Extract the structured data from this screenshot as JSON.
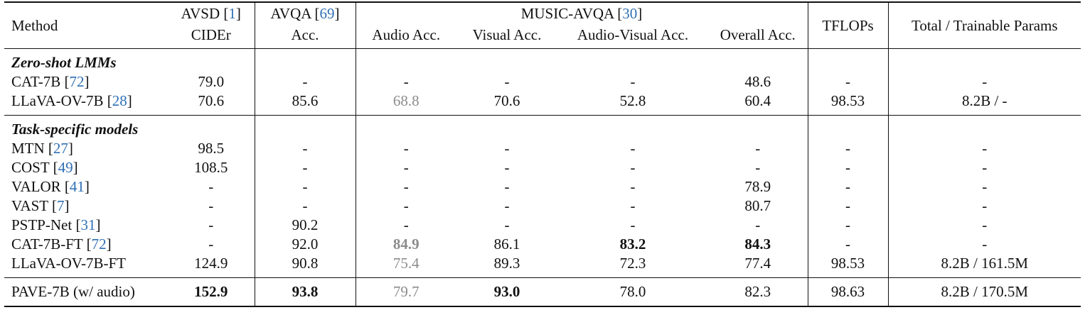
{
  "header": {
    "method": "Method",
    "avsd": "AVSD",
    "avsd_ref": "1",
    "avsd_metric": "CIDEr",
    "avqa": "AVQA",
    "avqa_ref": "69",
    "avqa_metric": "Acc.",
    "music": "MUSIC-AVQA",
    "music_ref": "30",
    "audio_acc": "Audio Acc.",
    "visual_acc": "Visual Acc.",
    "av_acc": "Audio-Visual Acc.",
    "overall_acc": "Overall Acc.",
    "tflops": "TFLOPs",
    "params": "Total / Trainable Params"
  },
  "sections": {
    "zero_shot": "Zero-shot LMMs",
    "task_specific": "Task-specific models"
  },
  "rows": [
    {
      "name": "CAT-7B",
      "ref": "72",
      "avsd": "79.0",
      "avqa": "-",
      "audio": "-",
      "visual": "-",
      "av": "-",
      "overall": "48.6",
      "tflops": "-",
      "params": "-"
    },
    {
      "name": "LLaVA-OV-7B",
      "ref": "28",
      "avsd": "70.6",
      "avqa": "85.6",
      "audio": "68.8",
      "visual": "70.6",
      "av": "52.8",
      "overall": "60.4",
      "tflops": "98.53",
      "params": "8.2B / -"
    },
    {
      "name": "MTN",
      "ref": "27",
      "avsd": "98.5",
      "avqa": "-",
      "audio": "-",
      "visual": "-",
      "av": "-",
      "overall": "-",
      "tflops": "-",
      "params": "-"
    },
    {
      "name": "COST",
      "ref": "49",
      "avsd": "108.5",
      "avqa": "-",
      "audio": "-",
      "visual": "-",
      "av": "-",
      "overall": "-",
      "tflops": "-",
      "params": "-"
    },
    {
      "name": "VALOR",
      "ref": "41",
      "avsd": "-",
      "avqa": "-",
      "audio": "-",
      "visual": "-",
      "av": "-",
      "overall": "78.9",
      "tflops": "-",
      "params": "-"
    },
    {
      "name": "VAST",
      "ref": "7",
      "avsd": "-",
      "avqa": "-",
      "audio": "-",
      "visual": "-",
      "av": "-",
      "overall": "80.7",
      "tflops": "-",
      "params": "-"
    },
    {
      "name": "PSTP-Net",
      "ref": "31",
      "avsd": "-",
      "avqa": "90.2",
      "audio": "-",
      "visual": "-",
      "av": "-",
      "overall": "-",
      "tflops": "-",
      "params": "-"
    },
    {
      "name": "CAT-7B-FT",
      "ref": "72",
      "avsd": "-",
      "avqa": "92.0",
      "audio": "84.9",
      "visual": "86.1",
      "av": "83.2",
      "overall": "84.3",
      "tflops": "-",
      "params": "-"
    },
    {
      "name": "LLaVA-OV-7B-FT",
      "ref": "",
      "avsd": "124.9",
      "avqa": "90.8",
      "audio": "75.4",
      "visual": "89.3",
      "av": "72.3",
      "overall": "77.4",
      "tflops": "98.53",
      "params": "8.2B / 161.5M"
    },
    {
      "name": "PAVE-7B (w/ audio)",
      "ref": "",
      "avsd": "152.9",
      "avqa": "93.8",
      "audio": "79.7",
      "visual": "93.0",
      "av": "78.0",
      "overall": "82.3",
      "tflops": "98.63",
      "params": "8.2B / 170.5M"
    }
  ],
  "colors": {
    "gray_text": "#8c8c8c",
    "citation_blue": "#2f6fb3"
  }
}
